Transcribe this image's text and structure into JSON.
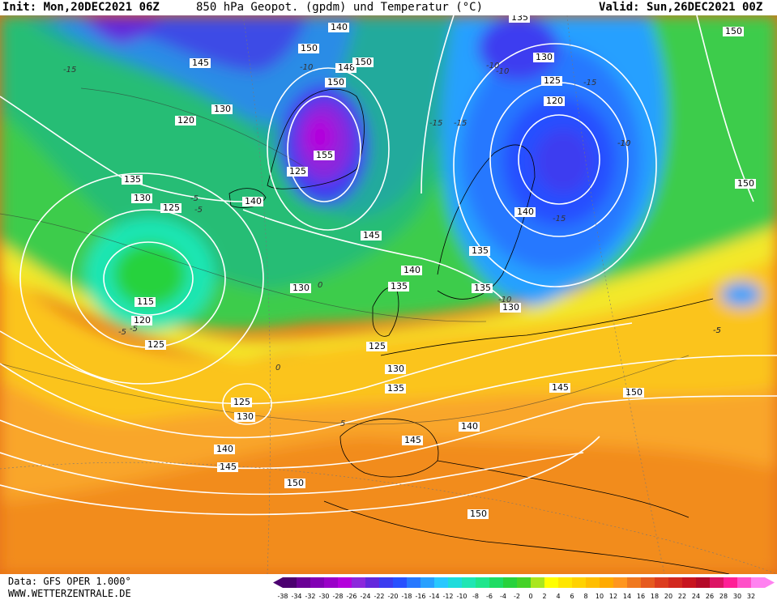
{
  "header": {
    "init": "Init: Mon,20DEC2021 06Z",
    "title": "850 hPa Geopot. (gpdm) und Temperatur (°C)",
    "valid": "Valid: Sun,26DEC2021 00Z"
  },
  "footer": {
    "data_source": "Data: GFS OPER 1.000°",
    "website": "WWW.WETTERZENTRALE.DE"
  },
  "colors": {
    "background_warm": "#f28c1c",
    "contour": "#ffffff"
  },
  "contour_labels": [
    "140",
    "145",
    "150",
    "148",
    "155",
    "150",
    "140",
    "135",
    "130",
    "125",
    "120",
    "135",
    "130",
    "125",
    "115",
    "120",
    "125",
    "145",
    "140",
    "135",
    "130",
    "125",
    "130",
    "135",
    "140",
    "145",
    "150",
    "150",
    "150",
    "145",
    "150",
    "125",
    "130",
    "140",
    "145",
    "150",
    "135",
    "130",
    "125",
    "120",
    "150",
    "135",
    "130",
    "140",
    "-10",
    "-15",
    "-5",
    "-10",
    "-15",
    "0",
    "-5",
    "-10",
    "-15",
    "-5",
    "-10",
    "-15",
    "5",
    "-5",
    "0",
    "-5",
    "-10",
    "-15",
    "-10",
    "-5"
  ],
  "legend": {
    "values": [
      "-38",
      "-34",
      "-32",
      "-30",
      "-28",
      "-26",
      "-24",
      "-22",
      "-20",
      "-18",
      "-16",
      "-14",
      "-12",
      "-10",
      "-8",
      "-6",
      "-4",
      "-2",
      "0",
      "2",
      "4",
      "6",
      "8",
      "10",
      "12",
      "14",
      "16",
      "18",
      "20",
      "22",
      "24",
      "26",
      "28",
      "30",
      "32"
    ],
    "colors": [
      "#4b0070",
      "#6a0096",
      "#8200b4",
      "#9a00c8",
      "#b400dc",
      "#8c28dc",
      "#6428dc",
      "#3c3cf0",
      "#2850ff",
      "#2878ff",
      "#28a0ff",
      "#28c8ff",
      "#1edcdc",
      "#1ee6b4",
      "#1ee68c",
      "#1edc64",
      "#28d23c",
      "#46d228",
      "#aae61e",
      "#ffff00",
      "#ffe600",
      "#ffd200",
      "#ffbe00",
      "#ffaa00",
      "#ff961e",
      "#f0781e",
      "#e65a1e",
      "#dc3c1e",
      "#d2281e",
      "#c8141e",
      "#b40a28",
      "#dc1464",
      "#ff1e96",
      "#ff50c8",
      "#ff82f0"
    ]
  }
}
